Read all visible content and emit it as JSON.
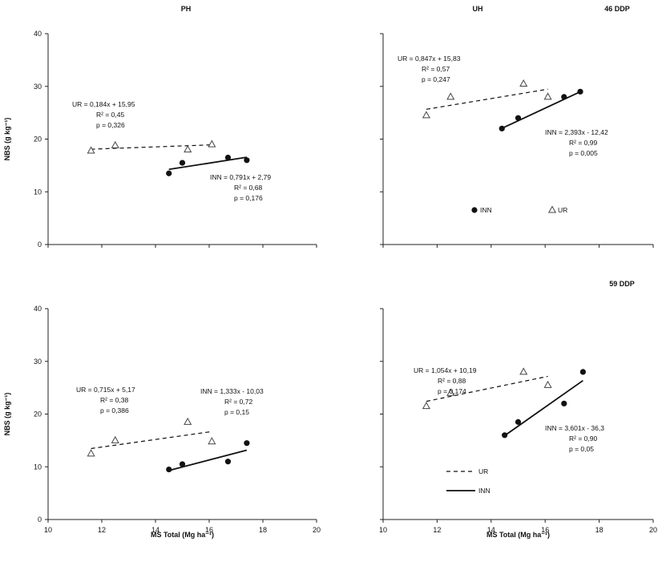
{
  "chart_data": [
    {
      "type": "scatter",
      "title": "PH",
      "subtitle": "",
      "ylabel": "NBS (g kg⁻¹)",
      "xlabel": "",
      "xlim": [
        10,
        20
      ],
      "ylim": [
        0,
        40
      ],
      "yticks": [
        "0",
        "10",
        "20",
        "30",
        "40"
      ],
      "xticks": [],
      "grid": false,
      "series": [
        {
          "name": "UR",
          "marker": "triangle",
          "line": "dashed",
          "x": [
            11.6,
            12.5,
            15.2,
            16.1
          ],
          "y": [
            17.8,
            18.8,
            18.0,
            19.0
          ]
        },
        {
          "name": "INN",
          "marker": "circle",
          "line": "solid",
          "x": [
            14.5,
            15.0,
            16.7,
            17.4
          ],
          "y": [
            13.5,
            15.5,
            16.5,
            16.0
          ]
        }
      ],
      "fits": [
        {
          "series": "UR",
          "slope": 0.184,
          "intercept": 15.95,
          "lines": [
            "UR = 0,184x + 15,95",
            "R² = 0,45",
            "p = 0,326"
          ]
        },
        {
          "series": "INN",
          "slope": 0.791,
          "intercept": 2.79,
          "lines": [
            "INN = 0,791x + 2,79",
            "R² = 0,68",
            "p = 0,176"
          ]
        }
      ]
    },
    {
      "type": "scatter",
      "title": "UH",
      "subtitle": "46 DDP",
      "ylabel": "",
      "xlabel": "",
      "xlim": [
        10,
        20
      ],
      "ylim": [
        0,
        40
      ],
      "yticks": [],
      "xticks": [],
      "grid": false,
      "series": [
        {
          "name": "UR",
          "marker": "triangle",
          "line": "dashed",
          "x": [
            11.6,
            12.5,
            15.2,
            16.1
          ],
          "y": [
            24.5,
            28.0,
            30.5,
            28.0
          ]
        },
        {
          "name": "INN",
          "marker": "circle",
          "line": "solid",
          "x": [
            14.4,
            15.0,
            16.7,
            17.3
          ],
          "y": [
            22.0,
            24.0,
            28.0,
            29.0
          ]
        }
      ],
      "fits": [
        {
          "series": "UR",
          "slope": 0.847,
          "intercept": 15.83,
          "lines": [
            "UR = 0,847x + 15,83",
            "R² = 0,57",
            "p = 0,247"
          ]
        },
        {
          "series": "INN",
          "slope": 2.393,
          "intercept": -12.42,
          "lines": [
            "INN = 2,393x - 12,42",
            "R² = 0,99",
            "p = 0,005"
          ]
        }
      ],
      "legend": {
        "placement": "bottom",
        "items": [
          "INN",
          "UR"
        ]
      }
    },
    {
      "type": "scatter",
      "title": "",
      "subtitle": "",
      "ylabel": "NBS (g kg⁻¹)",
      "xlabel": "MS Total (Mg ha⁻¹)",
      "xlim": [
        10,
        20
      ],
      "ylim": [
        0,
        40
      ],
      "yticks": [
        "0",
        "10",
        "20",
        "30",
        "40"
      ],
      "xticks": [
        "10",
        "12",
        "14",
        "16",
        "18",
        "20"
      ],
      "grid": false,
      "series": [
        {
          "name": "UR",
          "marker": "triangle",
          "line": "dashed",
          "x": [
            11.6,
            12.5,
            15.2,
            16.1
          ],
          "y": [
            12.5,
            15.0,
            18.5,
            14.8
          ]
        },
        {
          "name": "INN",
          "marker": "circle",
          "line": "solid",
          "x": [
            14.5,
            15.0,
            16.7,
            17.4
          ],
          "y": [
            9.5,
            10.5,
            11.0,
            14.5
          ]
        }
      ],
      "fits": [
        {
          "series": "UR",
          "slope": 0.715,
          "intercept": 5.17,
          "lines": [
            "UR = 0,715x + 5,17",
            "R² = 0,38",
            "p = 0,386"
          ]
        },
        {
          "series": "INN",
          "slope": 1.333,
          "intercept": -10.03,
          "lines": [
            "INN = 1,333x - 10,03",
            "R² = 0,72",
            "p = 0,15"
          ]
        }
      ]
    },
    {
      "type": "scatter",
      "title": "",
      "subtitle": "59 DDP",
      "ylabel": "",
      "xlabel": "MS Total (Mg ha⁻¹)",
      "xlim": [
        10,
        20
      ],
      "ylim": [
        0,
        40
      ],
      "yticks": [],
      "xticks": [
        "10",
        "12",
        "14",
        "16",
        "18",
        "20"
      ],
      "grid": false,
      "series": [
        {
          "name": "UR",
          "marker": "triangle",
          "line": "dashed",
          "x": [
            11.6,
            12.5,
            15.2,
            16.1
          ],
          "y": [
            21.5,
            24.0,
            28.0,
            25.5
          ]
        },
        {
          "name": "INN",
          "marker": "circle",
          "line": "solid",
          "x": [
            14.5,
            15.0,
            16.7,
            17.4
          ],
          "y": [
            16.0,
            18.5,
            22.0,
            28.0
          ]
        }
      ],
      "fits": [
        {
          "series": "UR",
          "slope": 1.054,
          "intercept": 10.19,
          "lines": [
            "UR = 1,054x + 10,19",
            "R² = 0,88",
            "p = 0,174"
          ]
        },
        {
          "series": "INN",
          "slope": 3.601,
          "intercept": -36.3,
          "lines": [
            "INN = 3,601x - 36,3",
            "R² = 0,90",
            "p = 0,05"
          ]
        }
      ],
      "legend": {
        "placement": "bottom-left",
        "items": [
          "UR",
          "INN"
        ]
      }
    }
  ]
}
